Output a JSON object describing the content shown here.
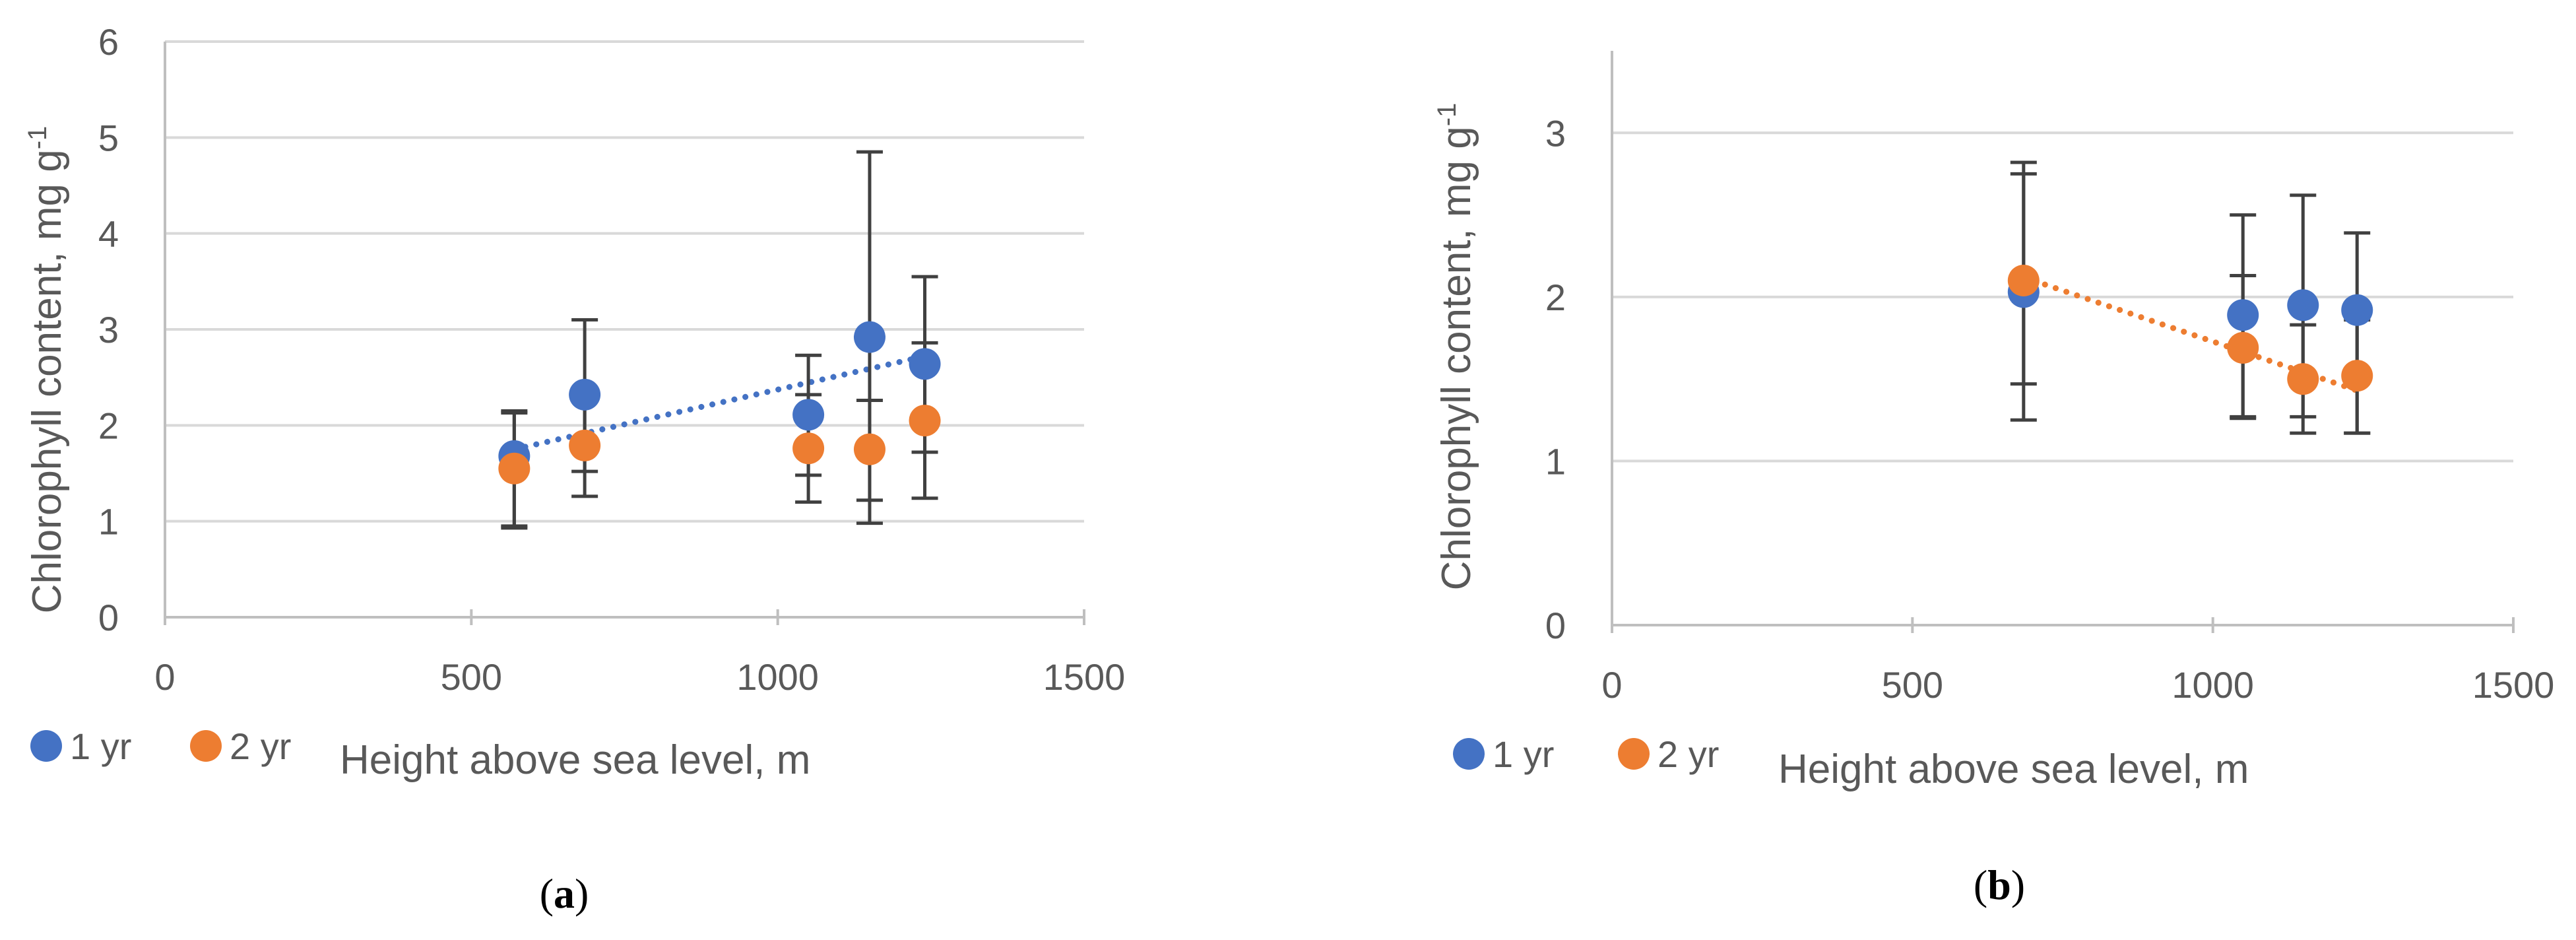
{
  "colors": {
    "series_1yr": "#4472C4",
    "series_2yr": "#ED7D31",
    "gridline": "#D9D9D9",
    "axis": "#BFBFBF",
    "error_bar": "#404040",
    "text": "#595959"
  },
  "chart_data": [
    {
      "type": "scatter",
      "panel": "a",
      "caption": {
        "open": "(",
        "letter": "a",
        "close": ")"
      },
      "title": "",
      "xlabel": "Height above sea level, m",
      "ylabel": "Chlorophyll content, mg g",
      "ylabel_superscript": "-1",
      "xlim": [
        0,
        1500
      ],
      "ylim": [
        0,
        6
      ],
      "xticks": [
        0,
        500,
        1000,
        1500
      ],
      "yticks": [
        0,
        1,
        2,
        3,
        4,
        5,
        6
      ],
      "grid": true,
      "legend_position": "bottom-left",
      "series": [
        {
          "name": "1 yr",
          "color_key": "series_1yr",
          "x": [
            570,
            685,
            1050,
            1150,
            1240
          ],
          "y": [
            1.68,
            2.32,
            2.11,
            2.92,
            2.64
          ],
          "error_low": [
            0.95,
            1.52,
            1.48,
            0.98,
            1.72
          ],
          "error_high": [
            2.13,
            3.1,
            2.73,
            4.85,
            3.55
          ],
          "trendline": {
            "x": [
              570,
              1240
            ],
            "y": [
              1.75,
              2.72
            ],
            "style": "dotted"
          }
        },
        {
          "name": "2 yr",
          "color_key": "series_2yr",
          "x": [
            570,
            685,
            1050,
            1150,
            1240
          ],
          "y": [
            1.55,
            1.79,
            1.76,
            1.75,
            2.05
          ],
          "error_low": [
            0.93,
            1.26,
            1.2,
            1.22,
            1.24
          ],
          "error_high": [
            2.15,
            2.32,
            2.32,
            2.26,
            2.86
          ]
        }
      ]
    },
    {
      "type": "scatter",
      "panel": "b",
      "caption": {
        "open": "(",
        "letter": "b",
        "close": ")"
      },
      "title": "",
      "xlabel": "Height above sea level, m",
      "ylabel": "Chlorophyll content, mg g",
      "ylabel_superscript": "-1",
      "xlim": [
        0,
        1500
      ],
      "ylim": [
        0,
        3.5
      ],
      "xticks": [
        0,
        500,
        1000,
        1500
      ],
      "yticks": [
        0,
        1,
        2,
        3
      ],
      "grid": true,
      "legend_position": "bottom-left",
      "series": [
        {
          "name": "1 yr",
          "color_key": "series_1yr",
          "x": [
            685,
            1050,
            1150,
            1240
          ],
          "y": [
            2.03,
            1.89,
            1.95,
            1.92
          ],
          "error_low": [
            1.25,
            1.27,
            1.27,
            1.17
          ],
          "error_high": [
            2.82,
            2.5,
            2.62,
            2.39
          ]
        },
        {
          "name": "2 yr",
          "color_key": "series_2yr",
          "x": [
            685,
            1050,
            1150,
            1240
          ],
          "y": [
            2.1,
            1.69,
            1.5,
            1.52
          ],
          "error_low": [
            1.47,
            1.26,
            1.17,
            1.17
          ],
          "error_high": [
            2.75,
            2.13,
            1.83,
            1.86
          ],
          "trendline": {
            "x": [
              685,
              1240
            ],
            "y": [
              2.12,
              1.43
            ],
            "style": "dotted"
          }
        }
      ]
    }
  ]
}
